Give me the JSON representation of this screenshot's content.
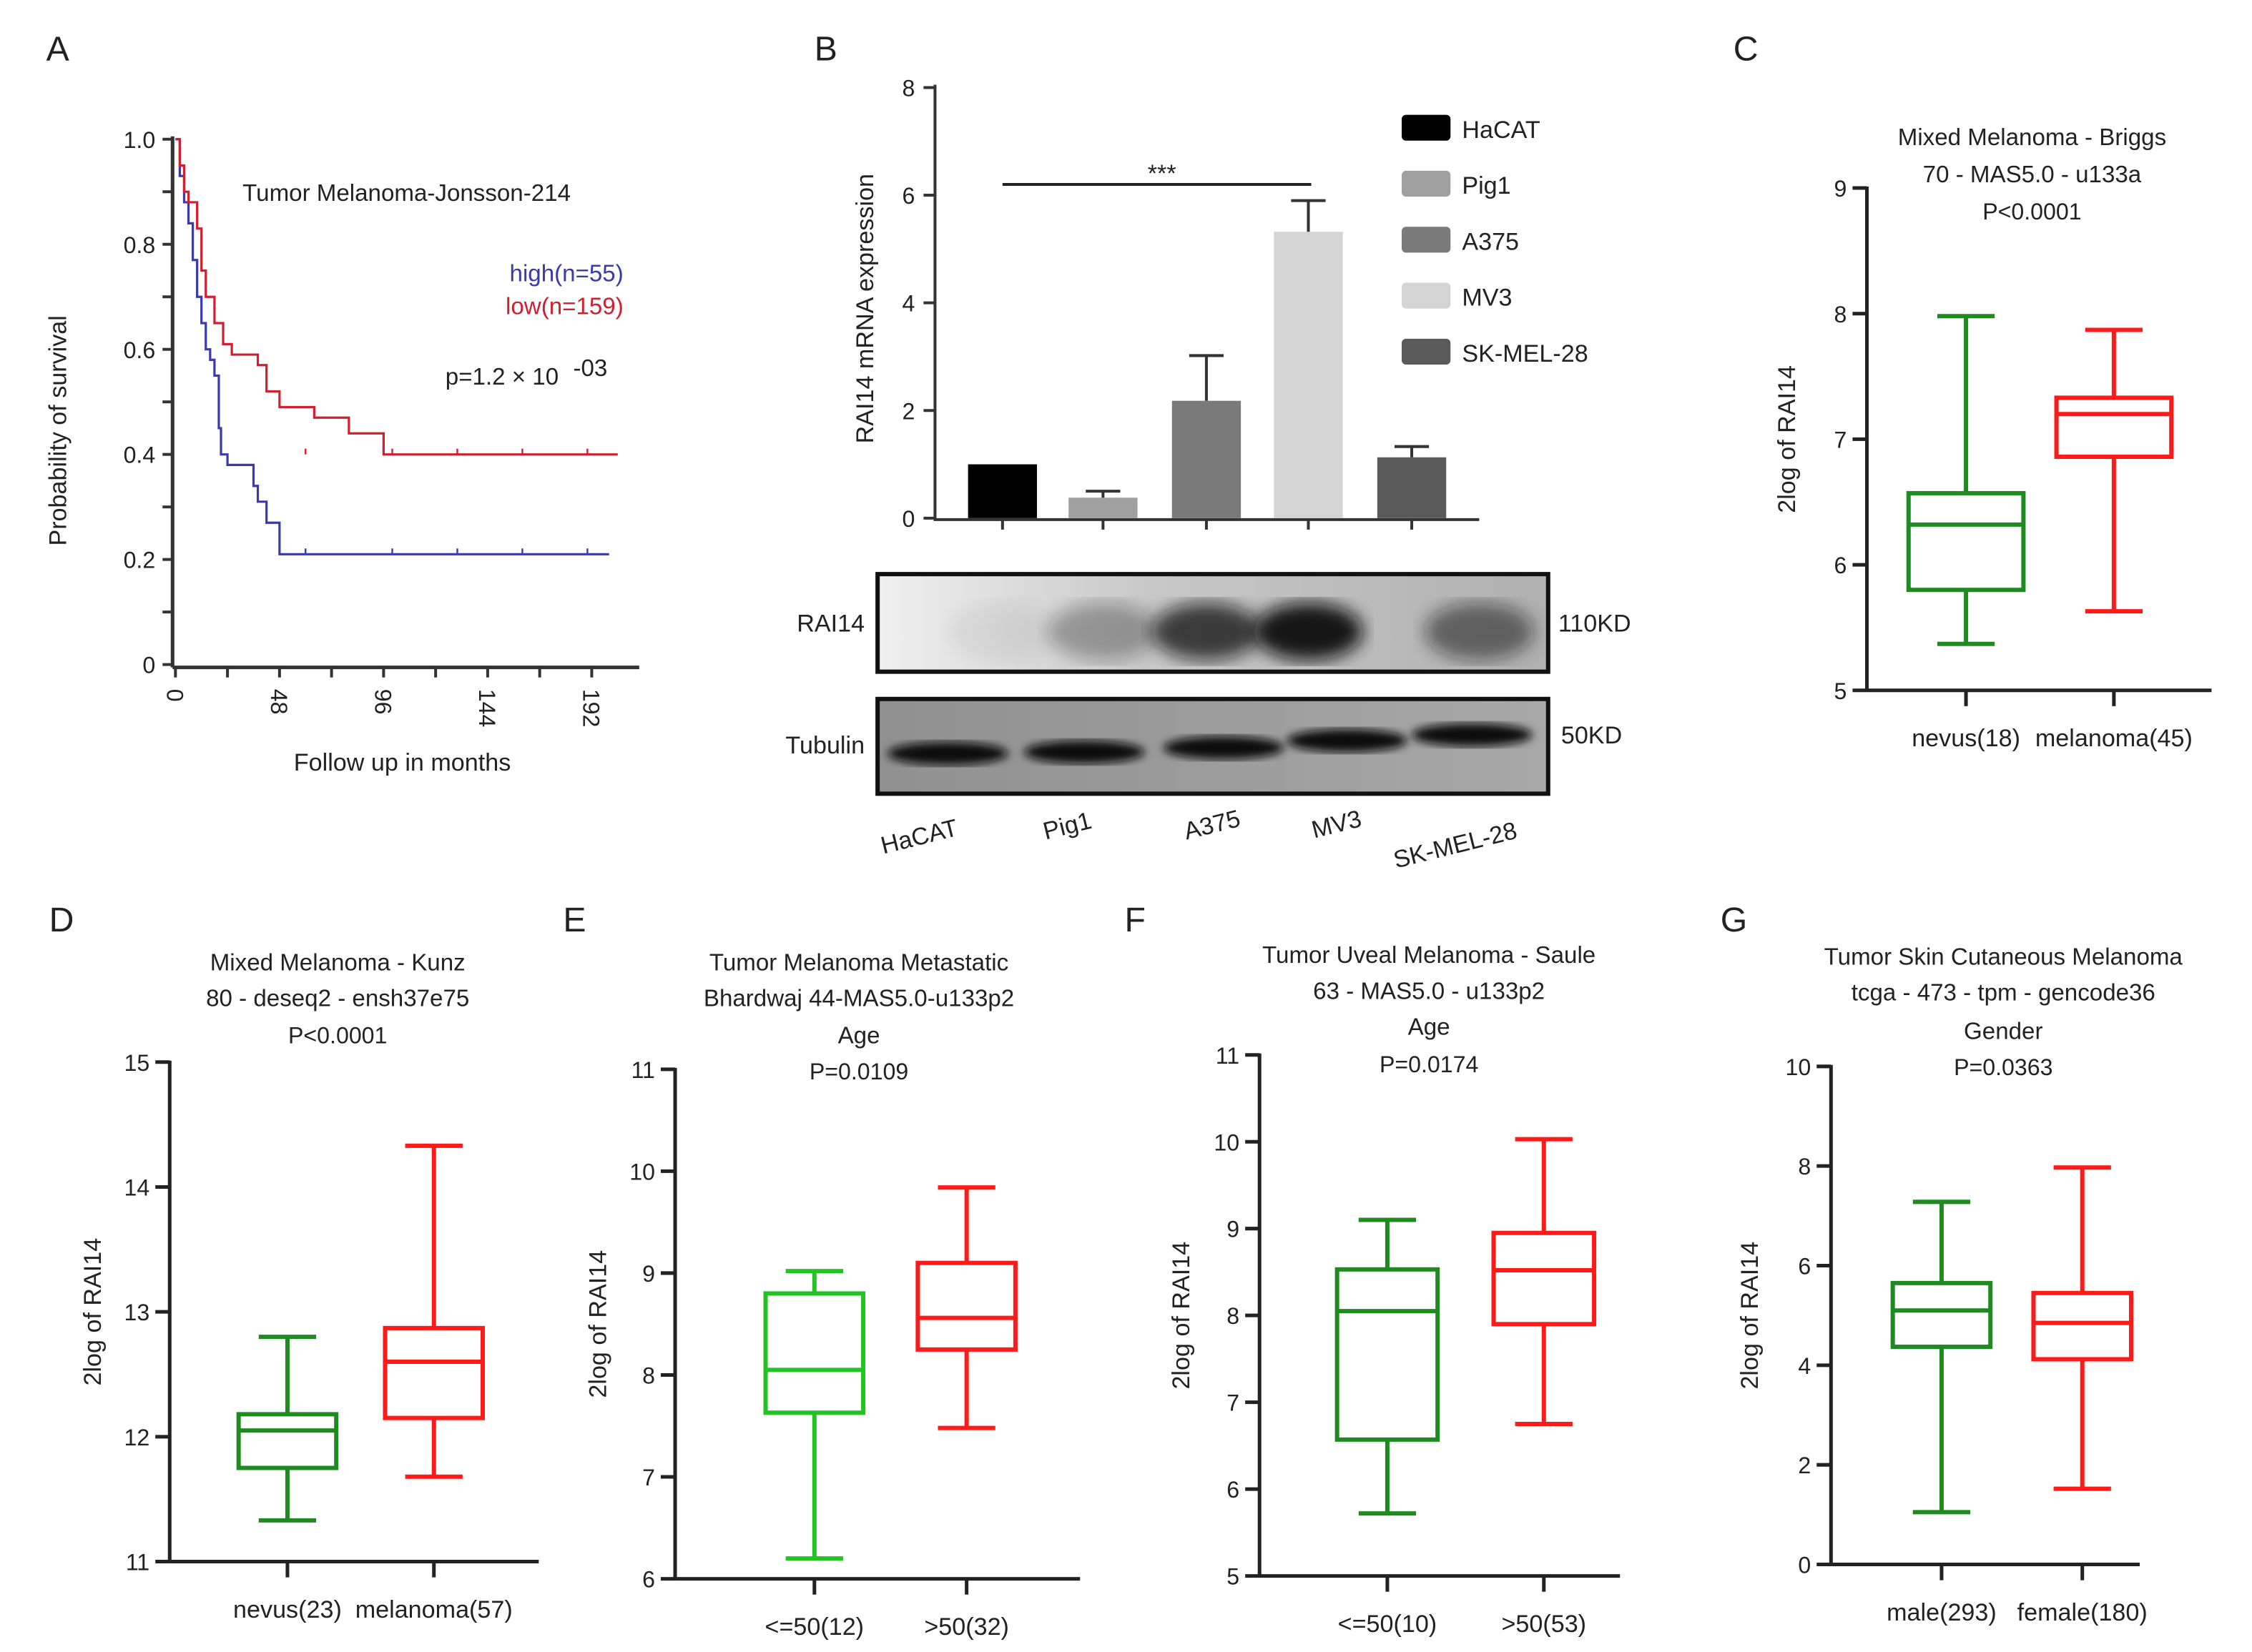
{
  "panel_letters": [
    "A",
    "B",
    "C",
    "D",
    "E",
    "F",
    "G"
  ],
  "chart_data": [
    {
      "id": "A",
      "type": "line",
      "title": "Tumor Melanoma-Jonsson-214",
      "xlabel": "Follow up in months",
      "ylabel": "Probability of  survival",
      "xlim": [
        0,
        210
      ],
      "ylim": [
        0,
        1.0
      ],
      "xticks": [
        "0",
        "48",
        "96",
        "144",
        "192"
      ],
      "yticks": [
        "0",
        "0.2",
        "0.4",
        "0.6",
        "0.8",
        "1.0"
      ],
      "pvalue": "p=1.2 × 10",
      "pvalue_exp": "-03",
      "series": [
        {
          "name": "high(n=55)",
          "color": "#3a3aa8",
          "x": [
            0,
            2,
            4,
            6,
            8,
            10,
            12,
            14,
            16,
            18,
            20,
            21,
            24,
            34,
            36,
            38,
            42,
            48,
            200
          ],
          "y": [
            1.0,
            0.93,
            0.88,
            0.84,
            0.77,
            0.7,
            0.65,
            0.6,
            0.58,
            0.55,
            0.45,
            0.4,
            0.38,
            0.38,
            0.34,
            0.31,
            0.27,
            0.21,
            0.21
          ]
        },
        {
          "name": "low(n=159)",
          "color": "#d02030",
          "x": [
            0,
            2,
            4,
            6,
            10,
            12,
            14,
            18,
            22,
            26,
            38,
            42,
            48,
            64,
            80,
            96,
            204
          ],
          "y": [
            1.0,
            0.95,
            0.9,
            0.88,
            0.83,
            0.75,
            0.7,
            0.65,
            0.61,
            0.59,
            0.57,
            0.52,
            0.49,
            0.47,
            0.44,
            0.4,
            0.4
          ]
        }
      ]
    },
    {
      "id": "B",
      "type": "bar",
      "ylabel": "RAI14 mRNA expression",
      "ylim": [
        0,
        8
      ],
      "yticks": [
        "0",
        "2",
        "4",
        "6",
        "8"
      ],
      "categories": [
        "HaCAT",
        "Pig1",
        "A375",
        "MV3",
        "SK-MEL-28"
      ],
      "values": [
        1.0,
        0.38,
        2.18,
        5.32,
        1.13
      ],
      "errors": [
        0,
        0.12,
        0.84,
        0.58,
        0.2
      ],
      "colors": [
        "#000000",
        "#a0a0a0",
        "#7a7a7a",
        "#d4d4d4",
        "#5a5a5a"
      ],
      "significance": {
        "label": "***",
        "from": "HaCAT",
        "to": "MV3",
        "y": 6.2
      },
      "western_blot": {
        "rows": [
          {
            "protein": "RAI14",
            "size": "110KD"
          },
          {
            "protein": "Tubulin",
            "size": "50KD"
          }
        ],
        "lanes": [
          "HaCAT",
          "Pig1",
          "A375",
          "MV3",
          "SK-MEL-28"
        ]
      }
    },
    {
      "id": "C",
      "type": "box",
      "title": [
        "Mixed Melanoma - Briggs",
        "70 - MAS5.0 - u133a"
      ],
      "pvalue": "P<0.0001",
      "ylabel": "2log of RAI14",
      "ylim": [
        5,
        9
      ],
      "yticks": [
        "5",
        "6",
        "7",
        "8",
        "9"
      ],
      "groups": [
        {
          "label": "nevus(18)",
          "color": "#1f8a1f",
          "min": 5.37,
          "q1": 5.8,
          "median": 6.32,
          "q3": 6.57,
          "max": 7.98
        },
        {
          "label": "melanoma(45)",
          "color": "#ff1a1a",
          "min": 5.63,
          "q1": 6.86,
          "median": 7.2,
          "q3": 7.33,
          "max": 7.87
        }
      ]
    },
    {
      "id": "D",
      "type": "box",
      "title": [
        "Mixed Melanoma - Kunz",
        "80 - deseq2 - ensh37e75"
      ],
      "pvalue": "P<0.0001",
      "ylabel": "2log of RAI14",
      "ylim": [
        11,
        15
      ],
      "yticks": [
        "11",
        "12",
        "13",
        "14",
        "15"
      ],
      "groups": [
        {
          "label": "nevus(23)",
          "color": "#1f8a1f",
          "min": 11.33,
          "q1": 11.75,
          "median": 12.05,
          "q3": 12.18,
          "max": 12.8
        },
        {
          "label": "melanoma(57)",
          "color": "#ff1a1a",
          "min": 11.68,
          "q1": 12.15,
          "median": 12.6,
          "q3": 12.87,
          "max": 14.33
        }
      ]
    },
    {
      "id": "E",
      "type": "box",
      "title": [
        "Tumor Melanoma Metastatic",
        "Bhardwaj 44-MAS5.0-u133p2",
        "Age"
      ],
      "pvalue": "P=0.0109",
      "ylabel": "2log of RAI14",
      "ylim": [
        6,
        11
      ],
      "yticks": [
        "6",
        "7",
        "8",
        "9",
        "10",
        "11"
      ],
      "groups": [
        {
          "label": "<=50(12)",
          "color": "#22c322",
          "min": 6.2,
          "q1": 7.63,
          "median": 8.05,
          "q3": 8.8,
          "max": 9.02
        },
        {
          "label": ">50(32)",
          "color": "#ff1a1a",
          "min": 7.48,
          "q1": 8.25,
          "median": 8.56,
          "q3": 9.1,
          "max": 9.84
        }
      ]
    },
    {
      "id": "F",
      "type": "box",
      "title": [
        "Tumor Uveal Melanoma - Saule",
        "63 - MAS5.0 - u133p2",
        "Age"
      ],
      "pvalue": "P=0.0174",
      "ylabel": "2log of RAI14",
      "ylim": [
        5,
        11
      ],
      "yticks": [
        "5",
        "6",
        "7",
        "8",
        "9",
        "10",
        "11"
      ],
      "groups": [
        {
          "label": "<=50(10)",
          "color": "#1f8a1f",
          "min": 5.72,
          "q1": 6.57,
          "median": 8.05,
          "q3": 8.53,
          "max": 9.1
        },
        {
          "label": ">50(53)",
          "color": "#ff1a1a",
          "min": 6.75,
          "q1": 7.9,
          "median": 8.52,
          "q3": 8.95,
          "max": 10.03
        }
      ]
    },
    {
      "id": "G",
      "type": "box",
      "title": [
        "Tumor Skin Cutaneous Melanoma",
        "tcga - 473 - tpm - gencode36",
        "Gender"
      ],
      "pvalue": "P=0.0363",
      "ylabel": "2log of RAI14",
      "ylim": [
        0,
        10
      ],
      "yticks": [
        "0",
        "2",
        "4",
        "6",
        "8",
        "10"
      ],
      "groups": [
        {
          "label": "male(293)",
          "color": "#1f8a1f",
          "min": 1.05,
          "q1": 4.37,
          "median": 5.1,
          "q3": 5.65,
          "max": 7.28
        },
        {
          "label": "female(180)",
          "color": "#ff1a1a",
          "min": 1.52,
          "q1": 4.12,
          "median": 4.85,
          "q3": 5.45,
          "max": 7.97
        }
      ]
    }
  ]
}
